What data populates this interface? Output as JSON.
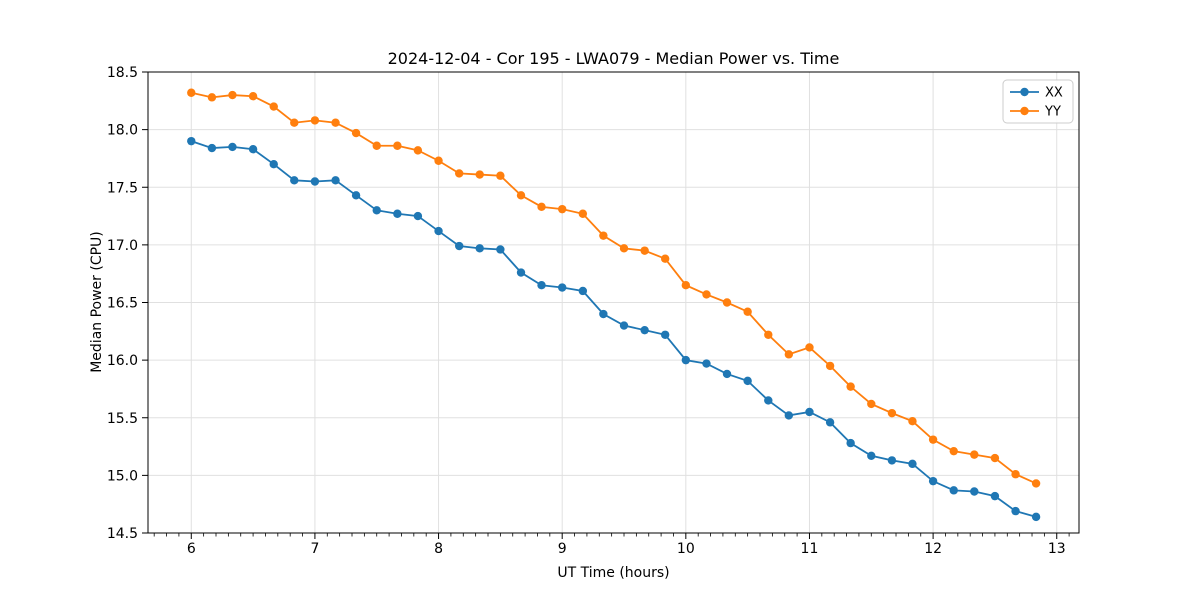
{
  "chart_data": {
    "type": "line",
    "title": "2024-12-04 - Cor 195 - LWA079 - Median Power vs. Time",
    "xlabel": "UT Time (hours)",
    "ylabel": "Median Power (CPU)",
    "xlim": [
      5.65,
      13.18
    ],
    "ylim": [
      14.5,
      18.5
    ],
    "x_ticks": [
      6,
      7,
      8,
      9,
      10,
      11,
      12,
      13
    ],
    "y_ticks": [
      14.5,
      15.0,
      15.5,
      16.0,
      16.5,
      17.0,
      17.5,
      18.0,
      18.5
    ],
    "x_minor_step": 0.1,
    "grid": true,
    "legend_position": "upper right",
    "x": [
      6.0,
      6.167,
      6.333,
      6.5,
      6.667,
      6.833,
      7.0,
      7.167,
      7.333,
      7.5,
      7.667,
      7.833,
      8.0,
      8.167,
      8.333,
      8.5,
      8.667,
      8.833,
      9.0,
      9.167,
      9.333,
      9.5,
      9.667,
      9.833,
      10.0,
      10.167,
      10.333,
      10.5,
      10.667,
      10.833,
      11.0,
      11.167,
      11.333,
      11.5,
      11.667,
      11.833,
      12.0,
      12.167,
      12.333,
      12.5,
      12.667,
      12.833
    ],
    "series": [
      {
        "name": "XX",
        "color": "#1f77b4",
        "values": [
          17.9,
          17.84,
          17.85,
          17.83,
          17.7,
          17.56,
          17.55,
          17.56,
          17.43,
          17.3,
          17.27,
          17.25,
          17.12,
          16.99,
          16.97,
          16.96,
          16.76,
          16.65,
          16.63,
          16.6,
          16.4,
          16.3,
          16.26,
          16.22,
          16.0,
          15.97,
          15.88,
          15.82,
          15.65,
          15.52,
          15.55,
          15.46,
          15.28,
          15.17,
          15.13,
          15.1,
          14.95,
          14.87,
          14.86,
          14.82,
          14.69,
          14.64
        ]
      },
      {
        "name": "YY",
        "color": "#ff7f0e",
        "values": [
          18.32,
          18.28,
          18.3,
          18.29,
          18.2,
          18.06,
          18.08,
          18.06,
          17.97,
          17.86,
          17.86,
          17.82,
          17.73,
          17.62,
          17.61,
          17.6,
          17.43,
          17.33,
          17.31,
          17.27,
          17.08,
          16.97,
          16.95,
          16.88,
          16.65,
          16.57,
          16.5,
          16.42,
          16.22,
          16.05,
          16.11,
          15.95,
          15.77,
          15.62,
          15.54,
          15.47,
          15.31,
          15.21,
          15.18,
          15.15,
          15.01,
          14.93
        ]
      }
    ],
    "colors": {
      "grid": "#e0e0e0",
      "spine": "#000000",
      "legend_border": "#cccccc"
    }
  }
}
